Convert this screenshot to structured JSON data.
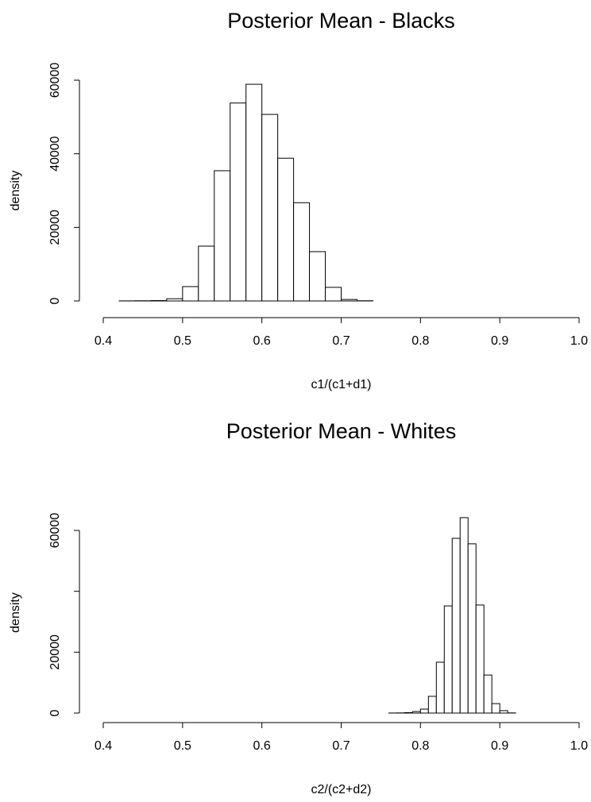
{
  "chart_data": [
    {
      "type": "histogram",
      "title": "Posterior Mean - Blacks",
      "xlabel": "c1/(c1+d1)",
      "ylabel": "density",
      "bins": [
        0.42,
        0.44,
        0.46,
        0.48,
        0.5,
        0.52,
        0.54,
        0.56,
        0.58,
        0.6,
        0.62,
        0.64,
        0.66,
        0.68,
        0.7,
        0.72,
        0.74
      ],
      "values": [
        20,
        50,
        100,
        600,
        3900,
        14900,
        35400,
        53800,
        58900,
        50700,
        38800,
        26700,
        13400,
        3700,
        400,
        50
      ],
      "color": "#ffffff",
      "xlim": [
        0.4,
        1
      ],
      "xticks": [
        0.4,
        0.5,
        0.6,
        0.7,
        0.8,
        0.9,
        {
          "value": 1,
          "label": "1.0"
        }
      ],
      "ylim": [
        0,
        60000
      ],
      "yticks": [
        0,
        20000,
        40000,
        60000
      ],
      "yminor_ticks": []
    },
    {
      "type": "histogram",
      "title": "Posterior Mean - Whites",
      "xlabel": "c2/(c2+d2)",
      "ylabel": "density",
      "bins": [
        0.76,
        0.77,
        0.78,
        0.79,
        0.8,
        0.81,
        0.82,
        0.83,
        0.84,
        0.85,
        0.86,
        0.87,
        0.88,
        0.89,
        0.9,
        0.91,
        0.92
      ],
      "values": [
        20,
        50,
        150,
        500,
        1300,
        5500,
        16700,
        35200,
        57400,
        64200,
        55600,
        35500,
        12500,
        3100,
        800,
        50
      ],
      "color": "#ffffff",
      "xlim": [
        0.4,
        1
      ],
      "xticks": [
        0.4,
        0.5,
        0.6,
        0.7,
        0.8,
        0.9,
        {
          "value": 1,
          "label": "1.0"
        }
      ],
      "ylim": [
        0,
        66000
      ],
      "yticks": [
        0,
        20000,
        60000
      ],
      "yminor_ticks": [
        40000
      ]
    }
  ]
}
